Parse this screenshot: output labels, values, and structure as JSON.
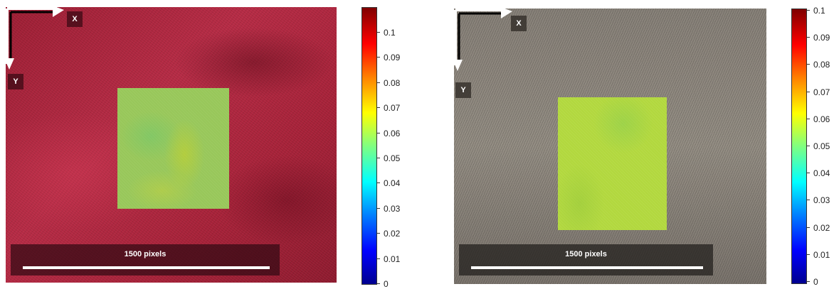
{
  "panels": [
    {
      "axis_x": "X",
      "axis_y": "Y",
      "scale_label": "1500 pixels",
      "colorbar_ticks": [
        "0.1",
        "0.09",
        "0.08",
        "0.07",
        "0.06",
        "0.05",
        "0.04",
        "0.03",
        "0.02",
        "0.01",
        "0"
      ],
      "background": "red speckle pattern"
    },
    {
      "axis_x": "X",
      "axis_y": "Y",
      "scale_label": "1500 pixels",
      "colorbar_ticks": [
        "0.1",
        "0.09",
        "0.08",
        "0.07",
        "0.06",
        "0.05",
        "0.04",
        "0.03",
        "0.02",
        "0.01",
        "0"
      ],
      "background": "gray speckle pattern"
    }
  ],
  "colors": {
    "colormap": [
      "#00008f",
      "#0000ff",
      "#0080ff",
      "#00ffff",
      "#80ff80",
      "#ffff00",
      "#ff8000",
      "#ff0000",
      "#800000"
    ]
  }
}
